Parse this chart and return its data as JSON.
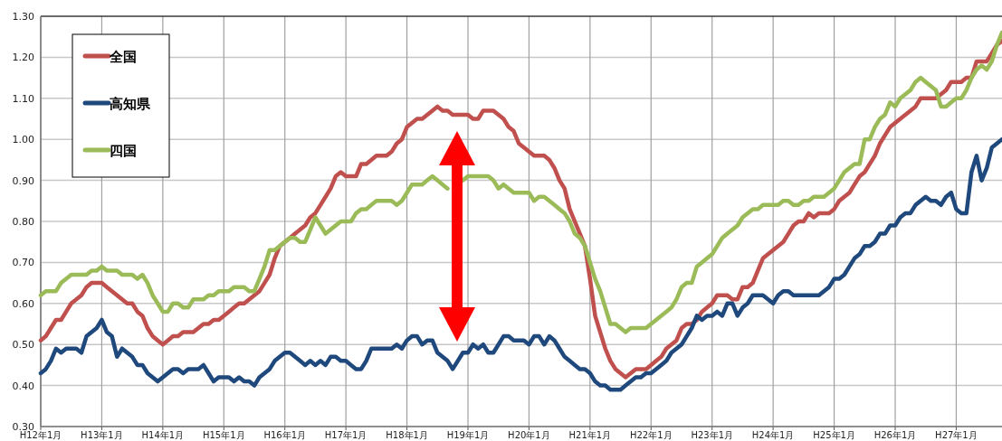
{
  "chart_data": {
    "type": "line",
    "legend": "top left",
    "grid": true,
    "line_style": "solid",
    "marker": "none",
    "categories": [
      "H12年1月",
      null,
      null,
      null,
      null,
      null,
      null,
      null,
      null,
      null,
      null,
      null,
      "H13年1月",
      null,
      null,
      null,
      null,
      null,
      null,
      null,
      null,
      null,
      null,
      null,
      "H14年1月",
      null,
      null,
      null,
      null,
      null,
      null,
      null,
      null,
      null,
      null,
      null,
      "H15年1月",
      null,
      null,
      null,
      null,
      null,
      null,
      null,
      null,
      null,
      null,
      null,
      "H16年1月",
      null,
      null,
      null,
      null,
      null,
      null,
      null,
      null,
      null,
      null,
      null,
      "H17年1月",
      null,
      null,
      null,
      null,
      null,
      null,
      null,
      null,
      null,
      null,
      null,
      "H18年1月",
      null,
      null,
      null,
      null,
      null,
      null,
      null,
      null,
      null,
      null,
      null,
      "H19年1月",
      null,
      null,
      null,
      null,
      null,
      null,
      null,
      null,
      null,
      null,
      null,
      "H20年1月",
      null,
      null,
      null,
      null,
      null,
      null,
      null,
      null,
      null,
      null,
      null,
      "H21年1月",
      null,
      null,
      null,
      null,
      null,
      null,
      null,
      null,
      null,
      null,
      null,
      "H22年1月",
      null,
      null,
      null,
      null,
      null,
      null,
      null,
      null,
      null,
      null,
      null,
      "H23年1月",
      null,
      null,
      null,
      null,
      null,
      null,
      null,
      null,
      null,
      null,
      null,
      "H24年1月",
      null,
      null,
      null,
      null,
      null,
      null,
      null,
      null,
      null,
      null,
      null,
      "H25年1月",
      null,
      null,
      null,
      null,
      null,
      null,
      null,
      null,
      null,
      null,
      null,
      "H26年1月",
      null,
      null,
      null,
      null,
      null,
      null,
      null,
      null,
      null,
      null,
      null,
      "H27年1月",
      null,
      null,
      null,
      null,
      null,
      null,
      null,
      null,
      null
    ],
    "ylim": [
      0.3,
      1.3
    ],
    "yticks": [
      {
        "value": 0.3,
        "label": "0.30"
      },
      {
        "value": 0.4,
        "label": "0.40"
      },
      {
        "value": 0.5,
        "label": "0.50"
      },
      {
        "value": 0.6,
        "label": "0.60"
      },
      {
        "value": 0.7,
        "label": "0.70"
      },
      {
        "value": 0.8,
        "label": "0.80"
      },
      {
        "value": 0.9,
        "label": "0.90"
      },
      {
        "value": 1.0,
        "label": "1.00"
      },
      {
        "value": 1.1,
        "label": "1.10"
      },
      {
        "value": 1.2,
        "label": "1.20"
      },
      {
        "value": 1.3,
        "label": "1.30"
      }
    ],
    "series": [
      {
        "name": "全国",
        "color": "#c0504d",
        "values": [
          0.51,
          0.52,
          0.54,
          0.56,
          0.56,
          0.58,
          0.6,
          0.61,
          0.62,
          0.64,
          0.65,
          0.65,
          0.65,
          0.64,
          0.63,
          0.62,
          0.61,
          0.6,
          0.6,
          0.58,
          0.57,
          0.54,
          0.52,
          0.51,
          0.5,
          0.51,
          0.52,
          0.52,
          0.53,
          0.53,
          0.53,
          0.54,
          0.55,
          0.55,
          0.56,
          0.56,
          0.57,
          0.58,
          0.59,
          0.6,
          0.6,
          0.61,
          0.62,
          0.63,
          0.65,
          0.67,
          0.71,
          0.74,
          0.75,
          0.76,
          0.77,
          0.78,
          0.79,
          0.81,
          0.82,
          0.84,
          0.86,
          0.88,
          0.91,
          0.92,
          0.91,
          0.91,
          0.91,
          0.94,
          0.94,
          0.95,
          0.96,
          0.96,
          0.96,
          0.97,
          0.99,
          1.0,
          1.03,
          1.04,
          1.05,
          1.05,
          1.06,
          1.07,
          1.08,
          1.07,
          1.07,
          1.06,
          1.06,
          1.06,
          1.06,
          1.05,
          1.05,
          1.07,
          1.07,
          1.07,
          1.06,
          1.05,
          1.03,
          1.02,
          0.99,
          0.98,
          0.97,
          0.96,
          0.96,
          0.96,
          0.95,
          0.93,
          0.9,
          0.88,
          0.83,
          0.8,
          0.77,
          0.74,
          0.66,
          0.57,
          0.53,
          0.49,
          0.46,
          0.44,
          0.43,
          0.42,
          0.43,
          0.44,
          0.44,
          0.44,
          0.45,
          0.46,
          0.47,
          0.49,
          0.5,
          0.51,
          0.54,
          0.55,
          0.55,
          0.56,
          0.58,
          0.59,
          0.6,
          0.62,
          0.62,
          0.62,
          0.61,
          0.61,
          0.64,
          0.64,
          0.65,
          0.68,
          0.71,
          0.72,
          0.73,
          0.74,
          0.75,
          0.77,
          0.79,
          0.8,
          0.8,
          0.82,
          0.81,
          0.82,
          0.82,
          0.82,
          0.83,
          0.85,
          0.86,
          0.87,
          0.89,
          0.91,
          0.92,
          0.94,
          0.96,
          0.99,
          1.01,
          1.03,
          1.04,
          1.05,
          1.06,
          1.07,
          1.08,
          1.1,
          1.1,
          1.1,
          1.1,
          1.11,
          1.12,
          1.14,
          1.14,
          1.14,
          1.15,
          1.15,
          1.19,
          1.19,
          1.19,
          1.21,
          1.23,
          1.24
        ]
      },
      {
        "name": "高知県",
        "color": "#1f497d",
        "values": [
          0.43,
          0.44,
          0.46,
          0.49,
          0.48,
          0.49,
          0.49,
          0.49,
          0.48,
          0.52,
          0.53,
          0.54,
          0.56,
          0.53,
          0.52,
          0.47,
          0.49,
          0.48,
          0.47,
          0.45,
          0.45,
          0.43,
          0.42,
          0.41,
          0.42,
          0.43,
          0.44,
          0.44,
          0.43,
          0.44,
          0.44,
          0.44,
          0.45,
          0.43,
          0.41,
          0.42,
          0.42,
          0.42,
          0.41,
          0.42,
          0.41,
          0.41,
          0.4,
          0.42,
          0.43,
          0.44,
          0.46,
          0.47,
          0.48,
          0.48,
          0.47,
          0.46,
          0.45,
          0.46,
          0.45,
          0.46,
          0.45,
          0.47,
          0.47,
          0.46,
          0.46,
          0.45,
          0.44,
          0.44,
          0.46,
          0.49,
          0.49,
          0.49,
          0.49,
          0.49,
          0.5,
          0.49,
          0.51,
          0.52,
          0.52,
          0.5,
          0.51,
          0.51,
          0.48,
          0.47,
          0.46,
          0.44,
          0.46,
          0.48,
          0.48,
          0.5,
          0.49,
          0.5,
          0.48,
          0.48,
          0.5,
          0.52,
          0.52,
          0.51,
          0.51,
          0.51,
          0.5,
          0.52,
          0.52,
          0.5,
          0.52,
          0.51,
          0.49,
          0.47,
          0.46,
          0.45,
          0.44,
          0.44,
          0.43,
          0.41,
          0.4,
          0.4,
          0.39,
          0.39,
          0.39,
          0.4,
          0.41,
          0.42,
          0.42,
          0.43,
          0.43,
          0.44,
          0.45,
          0.46,
          0.48,
          0.49,
          0.5,
          0.52,
          0.54,
          0.57,
          0.56,
          0.57,
          0.57,
          0.58,
          0.57,
          0.6,
          0.6,
          0.57,
          0.59,
          0.6,
          0.62,
          0.62,
          0.62,
          0.61,
          0.6,
          0.62,
          0.63,
          0.63,
          0.62,
          0.62,
          0.62,
          0.62,
          0.62,
          0.62,
          0.63,
          0.64,
          0.66,
          0.66,
          0.67,
          0.69,
          0.71,
          0.72,
          0.74,
          0.74,
          0.75,
          0.77,
          0.77,
          0.79,
          0.79,
          0.81,
          0.82,
          0.82,
          0.84,
          0.85,
          0.86,
          0.85,
          0.85,
          0.84,
          0.86,
          0.87,
          0.83,
          0.82,
          0.82,
          0.92,
          0.96,
          0.9,
          0.93,
          0.98,
          0.99,
          1.0
        ]
      },
      {
        "name": "四国",
        "color": "#9bbb59",
        "values": [
          0.62,
          0.63,
          0.63,
          0.63,
          0.65,
          0.66,
          0.67,
          0.67,
          0.67,
          0.67,
          0.68,
          0.68,
          0.69,
          0.68,
          0.68,
          0.68,
          0.67,
          0.67,
          0.67,
          0.66,
          0.67,
          0.65,
          0.62,
          0.6,
          0.58,
          0.58,
          0.6,
          0.6,
          0.59,
          0.59,
          0.61,
          0.61,
          0.61,
          0.62,
          0.62,
          0.63,
          0.63,
          0.63,
          0.64,
          0.64,
          0.64,
          0.63,
          0.63,
          0.66,
          0.69,
          0.73,
          0.73,
          0.74,
          0.75,
          0.76,
          0.76,
          0.75,
          0.75,
          0.78,
          0.81,
          0.79,
          0.77,
          0.78,
          0.79,
          0.8,
          0.8,
          0.8,
          0.82,
          0.83,
          0.83,
          0.84,
          0.85,
          0.85,
          0.85,
          0.85,
          0.84,
          0.85,
          0.87,
          0.89,
          0.89,
          0.89,
          0.9,
          0.91,
          0.9,
          0.89,
          0.88,
          null,
          null,
          0.9,
          0.91,
          0.91,
          0.91,
          0.91,
          0.91,
          0.9,
          0.88,
          0.89,
          0.88,
          0.87,
          0.87,
          0.87,
          0.87,
          0.85,
          0.86,
          0.86,
          0.85,
          0.84,
          0.83,
          0.82,
          0.8,
          0.77,
          0.76,
          0.74,
          0.7,
          0.66,
          0.63,
          0.59,
          0.55,
          0.55,
          0.54,
          0.53,
          0.54,
          0.54,
          0.54,
          0.54,
          0.55,
          0.56,
          0.57,
          0.58,
          0.59,
          0.61,
          0.64,
          0.65,
          0.65,
          0.69,
          0.7,
          0.71,
          0.72,
          0.74,
          0.76,
          0.77,
          0.78,
          0.79,
          0.81,
          0.82,
          0.83,
          0.83,
          0.84,
          0.84,
          0.84,
          0.84,
          0.85,
          0.85,
          0.84,
          0.84,
          0.85,
          0.85,
          0.86,
          0.86,
          0.86,
          0.87,
          0.88,
          0.9,
          0.92,
          0.93,
          0.94,
          0.94,
          1.0,
          1.0,
          1.03,
          1.05,
          1.06,
          1.09,
          1.08,
          1.1,
          1.11,
          1.12,
          1.14,
          1.15,
          1.14,
          1.13,
          1.12,
          1.08,
          1.08,
          1.09,
          1.1,
          1.1,
          1.12,
          1.15,
          1.17,
          1.18,
          1.17,
          1.19,
          1.23,
          1.26
        ]
      }
    ]
  }
}
